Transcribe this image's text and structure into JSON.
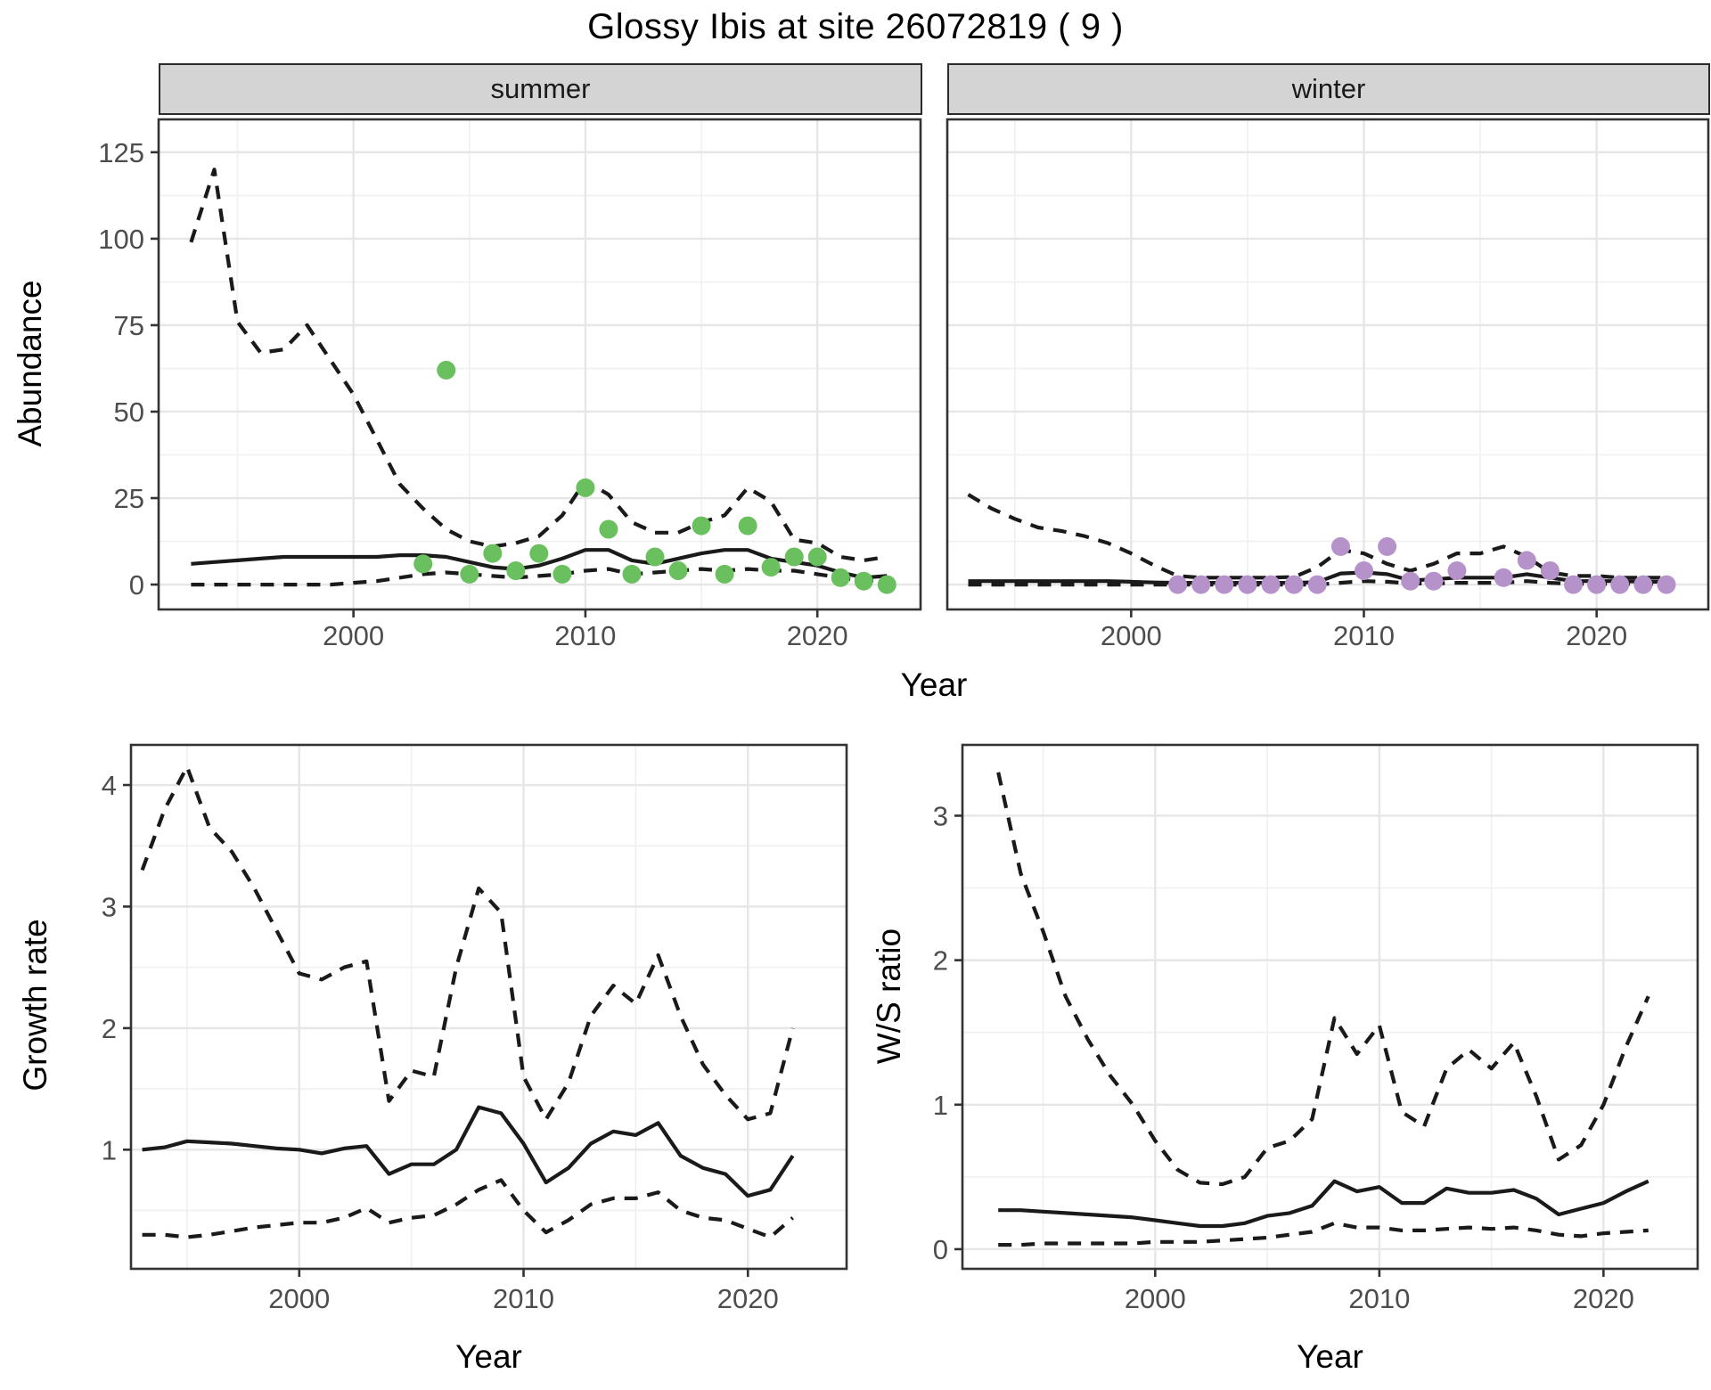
{
  "title": "Glossy Ibis at site 26072819 ( 9 )",
  "top_row": {
    "y_axis_label": "Abundance",
    "x_axis_label": "Year"
  },
  "bottom_row": {
    "left": {
      "y_axis_label": "Growth rate",
      "x_axis_label": "Year"
    },
    "right": {
      "y_axis_label": "W/S ratio",
      "x_axis_label": "Year"
    }
  },
  "colors": {
    "summer_point": "#6abf5e",
    "winter_point": "#b592c9",
    "line": "#1a1a1a",
    "panel_border": "#333333",
    "grid_major": "#e6e6e6",
    "grid_minor": "#f0f0f0",
    "tick_label": "#4d4d4d",
    "strip_bg": "#d4d4d4"
  },
  "chart_data": [
    {
      "id": "abundance_summer",
      "type": "line",
      "facet_label": "summer",
      "ylabel": "Abundance",
      "xlabel": "Year",
      "xlim": [
        1991.6,
        2024.45
      ],
      "ylim": [
        -7.2,
        134.5
      ],
      "xticks": [
        2000,
        2010,
        2020
      ],
      "yticks": [
        0,
        25,
        50,
        75,
        100,
        125
      ],
      "x_minor": [
        1995,
        2005,
        2015
      ],
      "y_minor": [
        12.5,
        37.5,
        62.5,
        87.5,
        112.5
      ],
      "years": [
        1993,
        1994,
        1995,
        1996,
        1997,
        1998,
        1999,
        2000,
        2001,
        2002,
        2003,
        2004,
        2005,
        2006,
        2007,
        2008,
        2009,
        2010,
        2011,
        2012,
        2013,
        2014,
        2015,
        2016,
        2017,
        2018,
        2019,
        2020,
        2021,
        2022,
        2023
      ],
      "series": [
        {
          "name": "upper_95ci",
          "style": "dashed",
          "values": [
            99,
            120,
            76,
            67,
            68,
            75,
            65,
            55,
            42,
            29,
            22,
            16,
            12.5,
            11,
            12,
            14,
            20,
            30,
            26,
            18,
            15,
            15,
            18,
            20,
            28,
            24,
            13,
            12,
            8,
            7,
            8
          ]
        },
        {
          "name": "median",
          "style": "solid",
          "values": [
            6,
            6.5,
            7,
            7.5,
            8,
            8,
            8,
            8,
            8,
            8.5,
            8.5,
            8,
            6.5,
            5,
            4.5,
            5.5,
            7.5,
            10,
            10,
            7,
            6,
            7.5,
            9,
            10,
            10,
            7.5,
            6.5,
            5.5,
            3.5,
            2,
            2.5
          ]
        },
        {
          "name": "lower_95ci",
          "style": "dashed",
          "values": [
            0,
            0,
            0,
            0,
            0,
            0,
            0,
            0.5,
            1,
            2,
            3,
            3.5,
            3,
            2.5,
            2,
            2.5,
            3,
            4,
            4.5,
            3,
            3.5,
            4,
            4.5,
            4,
            4.5,
            4,
            4,
            3,
            2,
            1,
            1.5
          ]
        }
      ],
      "points": {
        "name": "observed_counts",
        "color_key": "summer_point",
        "data": [
          [
            2003,
            6
          ],
          [
            2004,
            62
          ],
          [
            2005,
            3
          ],
          [
            2006,
            9
          ],
          [
            2007,
            4
          ],
          [
            2008,
            9
          ],
          [
            2009,
            3
          ],
          [
            2010,
            28
          ],
          [
            2011,
            16
          ],
          [
            2012,
            3
          ],
          [
            2013,
            8
          ],
          [
            2014,
            4
          ],
          [
            2015,
            17
          ],
          [
            2016,
            3
          ],
          [
            2017,
            17
          ],
          [
            2018,
            5
          ],
          [
            2019,
            8
          ],
          [
            2020,
            8
          ],
          [
            2021,
            2
          ],
          [
            2022,
            1
          ],
          [
            2023,
            0
          ]
        ]
      }
    },
    {
      "id": "abundance_winter",
      "type": "line",
      "facet_label": "winter",
      "ylabel": "Abundance",
      "xlabel": "Year",
      "xlim": [
        1992.1,
        2024.8
      ],
      "ylim": [
        -7.2,
        134.5
      ],
      "xticks": [
        2000,
        2010,
        2020
      ],
      "yticks": [
        0,
        25,
        50,
        75,
        100,
        125
      ],
      "x_minor": [
        1995,
        2005,
        2015
      ],
      "y_minor": [
        12.5,
        37.5,
        62.5,
        87.5,
        112.5
      ],
      "hide_y_labels": true,
      "years": [
        1993,
        1994,
        1995,
        1996,
        1997,
        1998,
        1999,
        2000,
        2001,
        2002,
        2003,
        2004,
        2005,
        2006,
        2007,
        2008,
        2009,
        2010,
        2011,
        2012,
        2013,
        2014,
        2015,
        2016,
        2017,
        2018,
        2019,
        2020,
        2021,
        2022,
        2023
      ],
      "series": [
        {
          "name": "upper_95ci",
          "style": "dashed",
          "values": [
            26,
            22,
            19,
            16.5,
            15.5,
            14,
            12,
            9,
            5.5,
            2.5,
            2,
            2,
            2,
            2,
            2.2,
            5,
            10,
            9,
            6,
            4,
            6,
            9,
            9,
            11,
            8,
            3.5,
            2.5,
            2.5,
            2,
            2,
            2
          ]
        },
        {
          "name": "median",
          "style": "solid",
          "values": [
            1,
            1,
            1,
            1,
            1,
            1,
            1,
            0.8,
            0.6,
            0.5,
            0.5,
            0.5,
            0.5,
            0.5,
            0.5,
            0.7,
            3.2,
            3.5,
            3,
            1.2,
            1.5,
            2,
            2,
            2,
            3,
            2,
            1,
            1,
            1,
            0.8,
            0.8
          ]
        },
        {
          "name": "lower_95ci",
          "style": "dashed",
          "values": [
            0,
            0,
            0,
            0,
            0,
            0,
            0,
            0,
            0,
            0,
            0,
            0,
            0,
            0,
            0,
            0,
            0.5,
            1,
            0.8,
            0.3,
            0.3,
            0.5,
            0.5,
            0.5,
            1,
            0.5,
            0.2,
            0.2,
            0.2,
            0.2,
            0.2
          ]
        }
      ],
      "points": {
        "name": "observed_counts",
        "color_key": "winter_point",
        "data": [
          [
            2002,
            0
          ],
          [
            2003,
            0
          ],
          [
            2004,
            0
          ],
          [
            2005,
            0
          ],
          [
            2006,
            0
          ],
          [
            2007,
            0
          ],
          [
            2008,
            0
          ],
          [
            2009,
            11
          ],
          [
            2010,
            4
          ],
          [
            2011,
            11
          ],
          [
            2012,
            1
          ],
          [
            2013,
            1
          ],
          [
            2014,
            4
          ],
          [
            2016,
            2
          ],
          [
            2017,
            7
          ],
          [
            2018,
            4
          ],
          [
            2019,
            0
          ],
          [
            2020,
            0
          ],
          [
            2021,
            0
          ],
          [
            2022,
            0
          ],
          [
            2023,
            0
          ]
        ]
      }
    },
    {
      "id": "growth_rate",
      "type": "line",
      "facet_label": "",
      "ylabel": "Growth rate",
      "xlabel": "Year",
      "xlim": [
        1992.5,
        2024.4
      ],
      "ylim": [
        0.02,
        4.33
      ],
      "xticks": [
        2000,
        2010,
        2020
      ],
      "yticks": [
        1,
        2,
        3,
        4
      ],
      "x_minor": [
        1995,
        2005,
        2015
      ],
      "y_minor": [
        0.5,
        1.5,
        2.5,
        3.5
      ],
      "years": [
        1993,
        1994,
        1995,
        1996,
        1997,
        1998,
        1999,
        2000,
        2001,
        2002,
        2003,
        2004,
        2005,
        2006,
        2007,
        2008,
        2009,
        2010,
        2011,
        2012,
        2013,
        2014,
        2015,
        2016,
        2017,
        2018,
        2019,
        2020,
        2021,
        2022
      ],
      "series": [
        {
          "name": "upper_95ci",
          "style": "dashed",
          "values": [
            3.3,
            3.8,
            4.15,
            3.65,
            3.45,
            3.15,
            2.8,
            2.45,
            2.4,
            2.5,
            2.55,
            1.4,
            1.65,
            1.6,
            2.5,
            3.15,
            2.95,
            1.6,
            1.25,
            1.55,
            2.1,
            2.35,
            2.2,
            2.6,
            2.1,
            1.7,
            1.45,
            1.25,
            1.3,
            2.0
          ]
        },
        {
          "name": "median",
          "style": "solid",
          "values": [
            1.0,
            1.02,
            1.07,
            1.06,
            1.05,
            1.03,
            1.01,
            1.0,
            0.97,
            1.01,
            1.03,
            0.8,
            0.88,
            0.88,
            1.0,
            1.35,
            1.3,
            1.05,
            0.73,
            0.85,
            1.05,
            1.15,
            1.12,
            1.22,
            0.95,
            0.85,
            0.8,
            0.62,
            0.67,
            0.95
          ]
        },
        {
          "name": "lower_95ci",
          "style": "dashed",
          "values": [
            0.3,
            0.3,
            0.28,
            0.3,
            0.33,
            0.36,
            0.38,
            0.4,
            0.4,
            0.44,
            0.52,
            0.4,
            0.44,
            0.46,
            0.55,
            0.67,
            0.75,
            0.5,
            0.32,
            0.42,
            0.55,
            0.6,
            0.6,
            0.65,
            0.5,
            0.44,
            0.42,
            0.35,
            0.28,
            0.44
          ]
        }
      ],
      "points": null
    },
    {
      "id": "ws_ratio",
      "type": "line",
      "facet_label": "",
      "ylabel": "W/S ratio",
      "xlabel": "Year",
      "xlim": [
        1991.4,
        2024.2
      ],
      "ylim": [
        -0.136,
        3.49
      ],
      "xticks": [
        2000,
        2010,
        2020
      ],
      "yticks": [
        0,
        1,
        2,
        3
      ],
      "x_minor": [
        1995,
        2005,
        2015
      ],
      "y_minor": [
        0.5,
        1.5,
        2.5
      ],
      "years": [
        1993,
        1994,
        1995,
        1996,
        1997,
        1998,
        1999,
        2000,
        2001,
        2002,
        2003,
        2004,
        2005,
        2006,
        2007,
        2008,
        2009,
        2010,
        2011,
        2012,
        2013,
        2014,
        2015,
        2016,
        2017,
        2018,
        2019,
        2020,
        2021,
        2022
      ],
      "series": [
        {
          "name": "upper_95ci",
          "style": "dashed",
          "values": [
            3.3,
            2.6,
            2.2,
            1.75,
            1.45,
            1.2,
            1.0,
            0.75,
            0.55,
            0.46,
            0.45,
            0.5,
            0.7,
            0.75,
            0.9,
            1.6,
            1.35,
            1.55,
            0.95,
            0.85,
            1.25,
            1.38,
            1.25,
            1.43,
            1.06,
            0.62,
            0.72,
            1.0,
            1.4,
            1.75
          ]
        },
        {
          "name": "median",
          "style": "solid",
          "values": [
            0.27,
            0.27,
            0.26,
            0.25,
            0.24,
            0.23,
            0.22,
            0.2,
            0.18,
            0.16,
            0.16,
            0.18,
            0.23,
            0.25,
            0.3,
            0.47,
            0.4,
            0.43,
            0.32,
            0.32,
            0.42,
            0.39,
            0.39,
            0.41,
            0.35,
            0.24,
            0.28,
            0.32,
            0.4,
            0.47
          ]
        },
        {
          "name": "lower_95ci",
          "style": "dashed",
          "values": [
            0.03,
            0.03,
            0.04,
            0.04,
            0.04,
            0.04,
            0.04,
            0.05,
            0.05,
            0.05,
            0.06,
            0.07,
            0.08,
            0.1,
            0.12,
            0.18,
            0.15,
            0.15,
            0.13,
            0.13,
            0.14,
            0.15,
            0.14,
            0.15,
            0.13,
            0.1,
            0.09,
            0.11,
            0.12,
            0.13
          ]
        }
      ],
      "points": null
    }
  ]
}
